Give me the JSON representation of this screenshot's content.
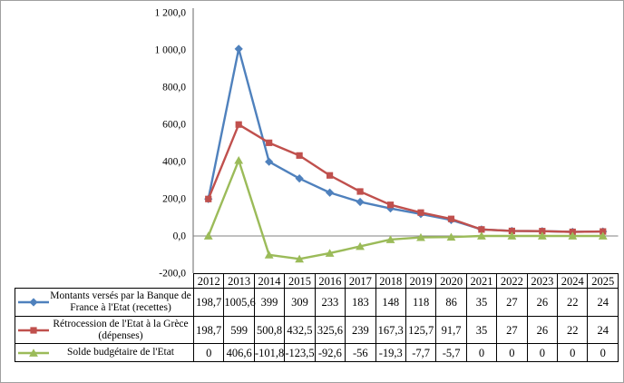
{
  "figure": {
    "background": "#ffffff",
    "border_color": "#a0a0a0"
  },
  "chart_data": {
    "type": "line",
    "title": "",
    "categories": [
      "2012",
      "2013",
      "2014",
      "2015",
      "2016",
      "2017",
      "2018",
      "2019",
      "2020",
      "2021",
      "2022",
      "2023",
      "2024",
      "2025"
    ],
    "series": [
      {
        "name": "Montants versés par la Banque de France à l'Etat (recettes)",
        "color": "#4F81BD",
        "marker": "diamond",
        "values": [
          198.7,
          1005.6,
          399,
          309,
          233,
          183,
          148,
          118,
          86,
          35,
          27,
          26,
          22,
          24
        ],
        "display_values": [
          "198,7",
          "1005,6",
          "399",
          "309",
          "233",
          "183",
          "148",
          "118",
          "86",
          "35",
          "27",
          "26",
          "22",
          "24"
        ]
      },
      {
        "name": "Rétrocession de l'Etat à la Grèce (dépenses)",
        "color": "#C0504D",
        "marker": "square",
        "values": [
          198.7,
          599,
          500.8,
          432.5,
          325.6,
          239,
          167.3,
          125.7,
          91.7,
          35,
          27,
          26,
          22,
          24
        ],
        "display_values": [
          "198,7",
          "599",
          "500,8",
          "432,5",
          "325,6",
          "239",
          "167,3",
          "125,7",
          "91,7",
          "35",
          "27",
          "26",
          "22",
          "24"
        ]
      },
      {
        "name": "Solde budgétaire de l'Etat",
        "color": "#9BBB59",
        "marker": "triangle",
        "values": [
          0,
          406.6,
          -101.8,
          -123.5,
          -92.6,
          -56,
          -19.3,
          -7.7,
          -5.7,
          0,
          0,
          0,
          0,
          0
        ],
        "display_values": [
          "0",
          "406,6",
          "-101,8",
          "-123,5",
          "-92,6",
          "-56",
          "-19,3",
          "-7,7",
          "-5,7",
          "0",
          "0",
          "0",
          "0",
          "0"
        ]
      }
    ],
    "ylim": [
      -200,
      1200
    ],
    "ytick_interval": 200,
    "ytick_labels": [
      "-200,0",
      "0,0",
      "200,0",
      "400,0",
      "600,0",
      "800,0",
      "1 000,0",
      "1 200,0"
    ],
    "grid": false,
    "zero_line": true,
    "legend_position": "data-table",
    "axis_color": "#808080",
    "table_border_color": "#000000",
    "text_color": "#000000"
  }
}
